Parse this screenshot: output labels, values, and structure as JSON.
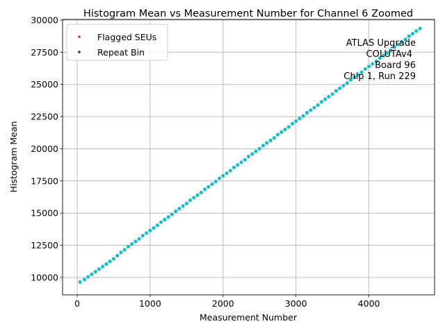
{
  "chart_data": {
    "type": "scatter",
    "title": "Histogram Mean vs Measurement Number for Channel 6 Zoomed",
    "xlabel": "Measurement Number",
    "ylabel": "Histogram Mean",
    "xlim": [
      -200,
      4900
    ],
    "ylim": [
      8650,
      30050
    ],
    "xticks": [
      0,
      1000,
      2000,
      3000,
      4000
    ],
    "xtick_labels": [
      "0",
      "1000",
      "2000",
      "3000",
      "4000"
    ],
    "yticks": [
      10000,
      12500,
      15000,
      17500,
      20000,
      22500,
      25000,
      27500,
      30000
    ],
    "ytick_labels": [
      "10000",
      "12500",
      "15000",
      "17500",
      "20000",
      "22500",
      "25000",
      "27500",
      "30000"
    ],
    "grid": true,
    "legend_position": "upper-left",
    "series": [
      {
        "name": "",
        "color": "#17becf",
        "marker": "circle",
        "x": [
          40,
          100,
          150,
          200,
          250,
          300,
          350,
          400,
          450,
          500,
          550,
          600,
          650,
          700,
          750,
          800,
          850,
          900,
          950,
          1000,
          1050,
          1100,
          1150,
          1200,
          1250,
          1300,
          1350,
          1400,
          1450,
          1500,
          1550,
          1600,
          1650,
          1700,
          1750,
          1800,
          1850,
          1900,
          1950,
          2000,
          2050,
          2100,
          2150,
          2200,
          2250,
          2300,
          2350,
          2400,
          2450,
          2500,
          2550,
          2600,
          2650,
          2700,
          2750,
          2800,
          2850,
          2900,
          2950,
          3000,
          3050,
          3100,
          3150,
          3200,
          3250,
          3300,
          3350,
          3400,
          3450,
          3500,
          3550,
          3600,
          3650,
          3700,
          3750,
          3800,
          3850,
          3900,
          3950,
          4000,
          4050,
          4100,
          4150,
          4200,
          4250,
          4300,
          4350,
          4400,
          4450,
          4500,
          4550,
          4600,
          4650,
          4700
        ],
        "y": [
          9650,
          9850,
          10050,
          10250,
          10450,
          10650,
          10850,
          11050,
          11250,
          11450,
          11700,
          11950,
          12150,
          12400,
          12600,
          12800,
          13000,
          13250,
          13450,
          13650,
          13850,
          14050,
          14300,
          14500,
          14700,
          14900,
          15150,
          15350,
          15550,
          15750,
          16000,
          16200,
          16400,
          16600,
          16850,
          17050,
          17250,
          17450,
          17700,
          17900,
          18100,
          18300,
          18550,
          18750,
          18950,
          19150,
          19400,
          19600,
          19800,
          20000,
          20250,
          20450,
          20650,
          20850,
          21100,
          21300,
          21500,
          21700,
          21950,
          22150,
          22350,
          22550,
          22800,
          23000,
          23200,
          23400,
          23650,
          23850,
          24050,
          24250,
          24500,
          24700,
          24900,
          25100,
          25350,
          25550,
          25750,
          25950,
          26200,
          26400,
          26600,
          26800,
          27050,
          27250,
          27450,
          27650,
          27900,
          28100,
          28300,
          28500,
          28750,
          28950,
          29150,
          29350
        ]
      },
      {
        "name": "Flagged SEUs",
        "color": "#d62728",
        "marker": "circle",
        "x": [],
        "y": []
      },
      {
        "name": "Repeat Bin",
        "color": "#6a0d6a",
        "marker": "circle",
        "x": [],
        "y": []
      }
    ],
    "annotation": [
      "ATLAS Upgrade",
      "COLUTAv4",
      "Board 96",
      "Chip 1, Run 229"
    ]
  }
}
